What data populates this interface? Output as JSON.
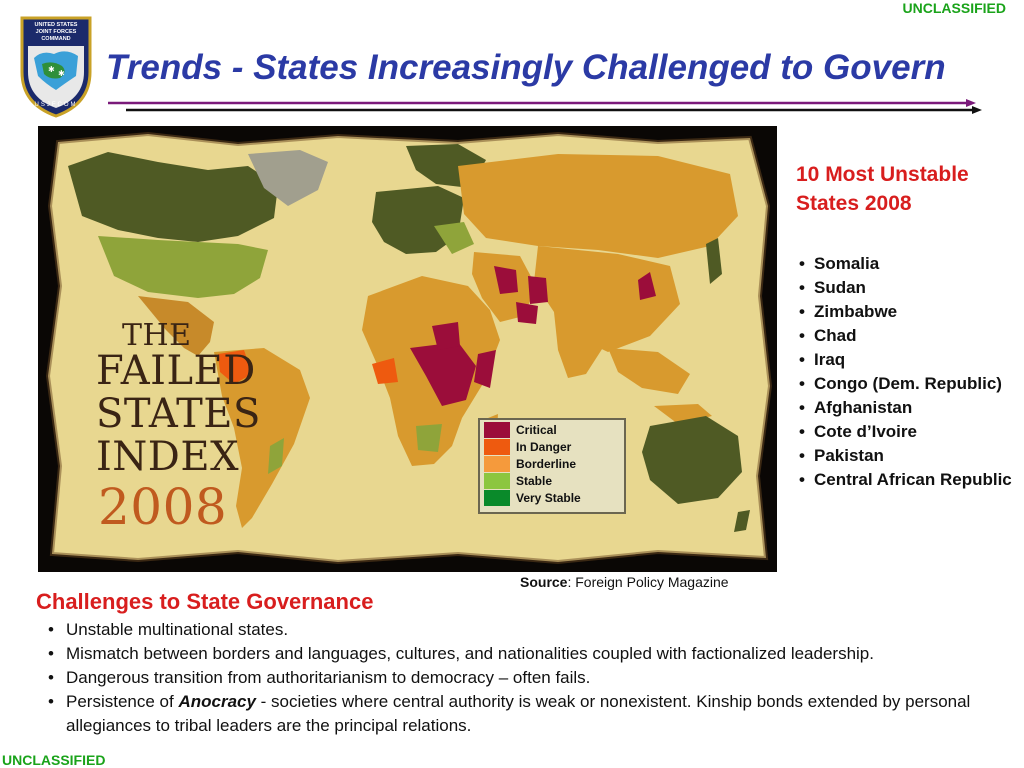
{
  "classification": {
    "top": "UNCLASSIFIED",
    "bottom": "UNCLASSIFIED"
  },
  "logo": {
    "line1": "UNITED STATES",
    "line2": "JOINT FORCES",
    "line3": "COMMAND",
    "bottom_text": "USJFCOM"
  },
  "title": "Trends - States Increasingly Challenged to Govern",
  "map": {
    "overlay": {
      "the": "THE",
      "failed": "FAILED",
      "states": "STATES",
      "index": "INDEX",
      "year": "2008"
    },
    "legend": [
      {
        "label": "Critical",
        "color": "#9b0d3a"
      },
      {
        "label": "In Danger",
        "color": "#ee5a0f"
      },
      {
        "label": "Borderline",
        "color": "#f59a3c"
      },
      {
        "label": "Stable",
        "color": "#8cc63f"
      },
      {
        "label": "Very Stable",
        "color": "#0a8a2a"
      }
    ],
    "source_label": "Source",
    "source_text": ": Foreign Policy Magazine"
  },
  "unstable": {
    "heading": "10 Most Unstable States 2008",
    "items": [
      "Somalia",
      "Sudan",
      "Zimbabwe",
      "Chad",
      "Iraq",
      "Congo (Dem. Republic)",
      "Afghanistan",
      "Cote d’Ivoire",
      "Pakistan",
      "Central African Republic"
    ]
  },
  "challenges": {
    "heading": "Challenges to State Governance",
    "items": [
      "Unstable multinational states.",
      "Mismatch between borders and languages, cultures, and nationalities coupled with factionalized leadership.",
      "Dangerous transition from authoritarianism to democracy – often fails."
    ],
    "anocracy_prefix": "Persistence of ",
    "anocracy_term": "Anocracy",
    "anocracy_rest": " - societies where central authority is weak or nonexistent. Kinship bonds extended by personal allegiances to tribal leaders are the principal relations."
  }
}
